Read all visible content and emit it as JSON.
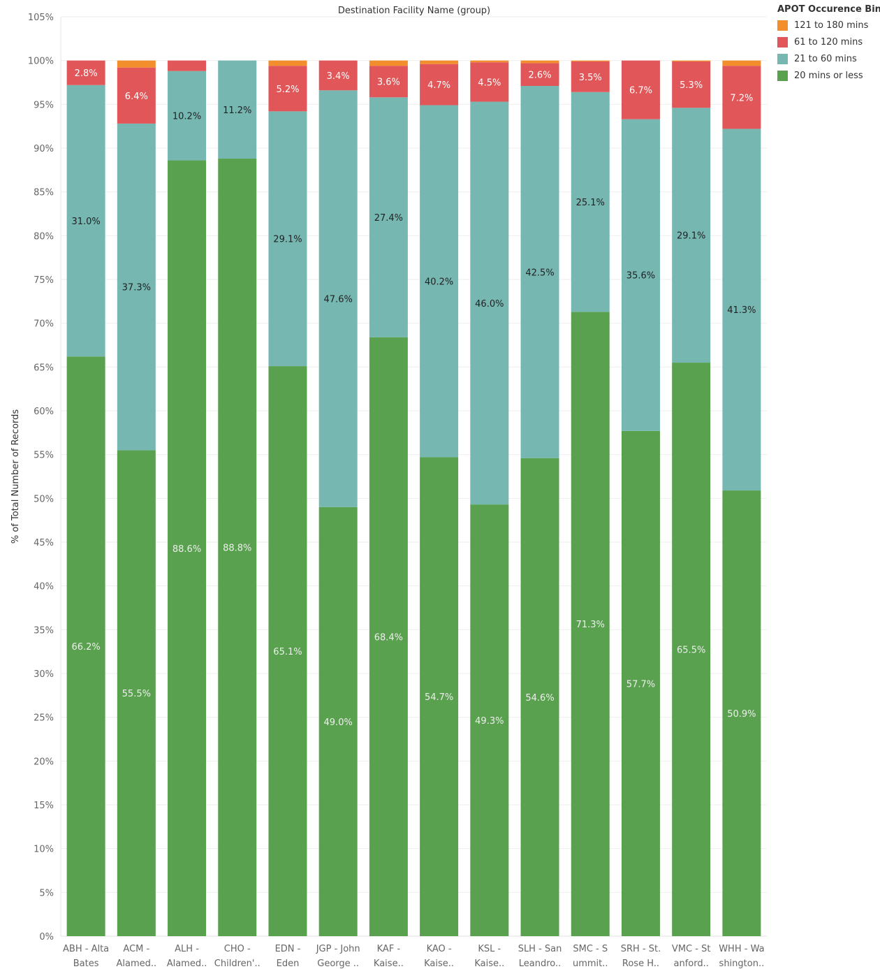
{
  "chart_data": {
    "type": "bar",
    "stacked": true,
    "title": "Destination Facility Name (group)",
    "ylabel": "% of Total Number of Records",
    "ylim": [
      0,
      105
    ],
    "yticks": [
      "0%",
      "5%",
      "10%",
      "15%",
      "20%",
      "25%",
      "30%",
      "35%",
      "40%",
      "45%",
      "50%",
      "55%",
      "60%",
      "65%",
      "70%",
      "75%",
      "80%",
      "85%",
      "90%",
      "95%",
      "100%",
      "105%"
    ],
    "grid": true,
    "legend_position": "top-right",
    "categories": [
      [
        "ABH - Alta",
        "Bates"
      ],
      [
        "ACM -",
        "Alamed.."
      ],
      [
        "ALH -",
        "Alamed.."
      ],
      [
        "CHO -",
        "Children'.."
      ],
      [
        "EDN -",
        "Eden"
      ],
      [
        "JGP - John",
        "George .."
      ],
      [
        "KAF -",
        "Kaise.."
      ],
      [
        "KAO -",
        "Kaise.."
      ],
      [
        "KSL -",
        "Kaise.."
      ],
      [
        "SLH - San",
        "Leandro.."
      ],
      [
        "SMC - S",
        "ummit.."
      ],
      [
        "SRH - St.",
        "Rose H.."
      ],
      [
        "VMC - St",
        "anford.."
      ],
      [
        "WHH - Wa",
        "shington.."
      ]
    ],
    "series": [
      {
        "name": "20 mins or less",
        "color": "#59a14f",
        "label_color": "#eeeeee",
        "values": [
          66.2,
          55.5,
          88.6,
          88.8,
          65.1,
          49.0,
          68.4,
          54.7,
          49.3,
          54.6,
          71.3,
          57.7,
          65.5,
          50.9
        ],
        "labels": [
          "66.2%",
          "55.5%",
          "88.6%",
          "88.8%",
          "65.1%",
          "49.0%",
          "68.4%",
          "54.7%",
          "49.3%",
          "54.6%",
          "71.3%",
          "57.7%",
          "65.5%",
          "50.9%"
        ]
      },
      {
        "name": "21 to 60 mins",
        "color": "#76b7b2",
        "label_color": "#222222",
        "values": [
          31.0,
          37.3,
          10.2,
          11.2,
          29.1,
          47.6,
          27.4,
          40.2,
          46.0,
          42.5,
          25.1,
          35.6,
          29.1,
          41.3
        ],
        "labels": [
          "31.0%",
          "37.3%",
          "10.2%",
          "11.2%",
          "29.1%",
          "47.6%",
          "27.4%",
          "40.2%",
          "46.0%",
          "42.5%",
          "25.1%",
          "35.6%",
          "29.1%",
          "41.3%"
        ]
      },
      {
        "name": "61 to 120 mins",
        "color": "#e15759",
        "label_color": "#ffffff",
        "values": [
          2.8,
          6.4,
          1.2,
          0,
          5.2,
          3.4,
          3.6,
          4.7,
          4.5,
          2.6,
          3.5,
          6.7,
          5.3,
          7.2
        ],
        "labels": [
          "2.8%",
          "6.4%",
          "",
          "",
          "5.2%",
          "3.4%",
          "3.6%",
          "4.7%",
          "4.5%",
          "2.6%",
          "3.5%",
          "6.7%",
          "5.3%",
          "7.2%"
        ]
      },
      {
        "name": "121 to 180 mins",
        "color": "#f28e2b",
        "label_color": "#ffffff",
        "values": [
          0,
          0.8,
          0,
          0,
          0.6,
          0,
          0.6,
          0.4,
          0.2,
          0.3,
          0.1,
          0,
          0.1,
          0.6
        ],
        "labels": [
          "",
          "",
          "",
          "",
          "",
          "",
          "",
          "",
          "",
          "",
          "",
          "",
          "",
          ""
        ]
      }
    ],
    "legend": {
      "title": "APOT Occurence Bins",
      "items": [
        {
          "name": "121 to 180 mins",
          "color": "#f28e2b"
        },
        {
          "name": "61 to 120 mins",
          "color": "#e15759"
        },
        {
          "name": "21 to 60 mins",
          "color": "#76b7b2"
        },
        {
          "name": "20 mins or less",
          "color": "#59a14f"
        }
      ]
    }
  }
}
